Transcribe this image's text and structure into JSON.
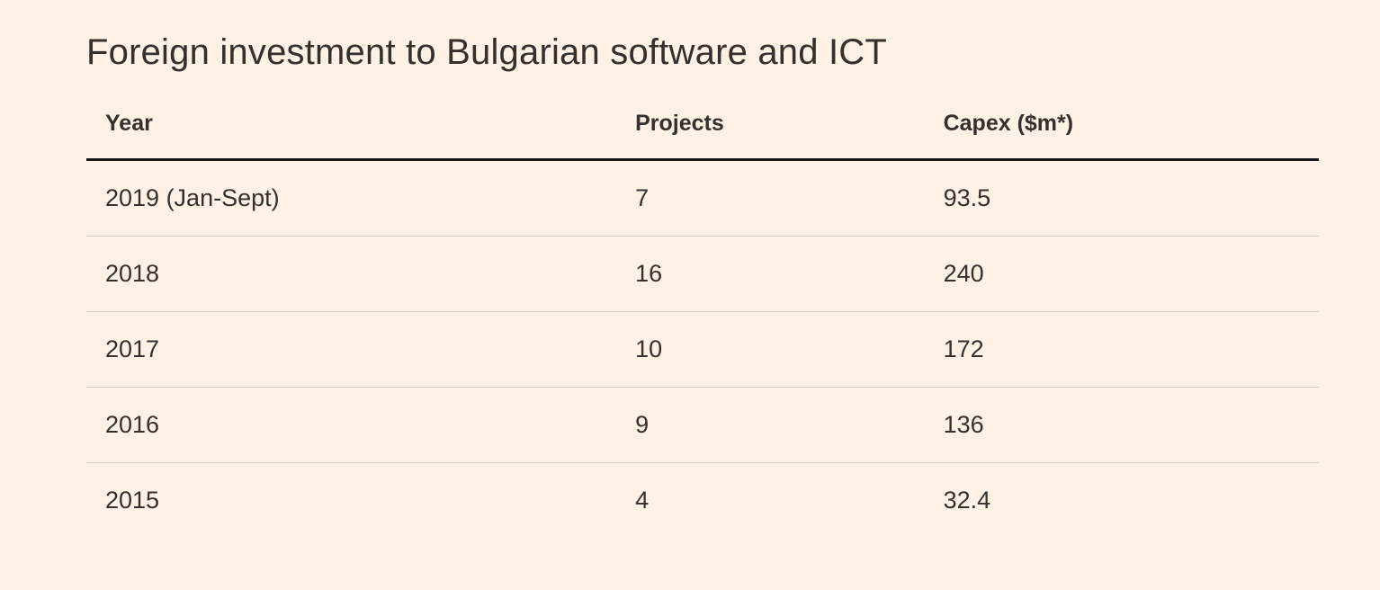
{
  "page": {
    "title": "Foreign investment to Bulgarian software and ICT"
  },
  "colors": {
    "background": "#FFF1E5",
    "text": "#33302E",
    "header_rule": "#1A1817",
    "row_divider": "#D9D0C7"
  },
  "table": {
    "columns": {
      "year": "Year",
      "projects": "Projects",
      "capex": "Capex ($m*)"
    },
    "rows": [
      {
        "year": "2019 (Jan-Sept)",
        "projects": "7",
        "capex": "93.5"
      },
      {
        "year": "2018",
        "projects": "16",
        "capex": "240"
      },
      {
        "year": "2017",
        "projects": "10",
        "capex": "172"
      },
      {
        "year": "2016",
        "projects": "9",
        "capex": "136"
      },
      {
        "year": "2015",
        "projects": "4",
        "capex": "32.4"
      }
    ]
  },
  "chart_data": {
    "type": "table",
    "title": "Foreign investment to Bulgarian software and ICT",
    "columns": [
      "Year",
      "Projects",
      "Capex ($m*)"
    ],
    "rows": [
      [
        "2019 (Jan-Sept)",
        7,
        93.5
      ],
      [
        "2018",
        16,
        240
      ],
      [
        "2017",
        10,
        172
      ],
      [
        "2016",
        9,
        136
      ],
      [
        "2015",
        4,
        32.4
      ]
    ]
  }
}
